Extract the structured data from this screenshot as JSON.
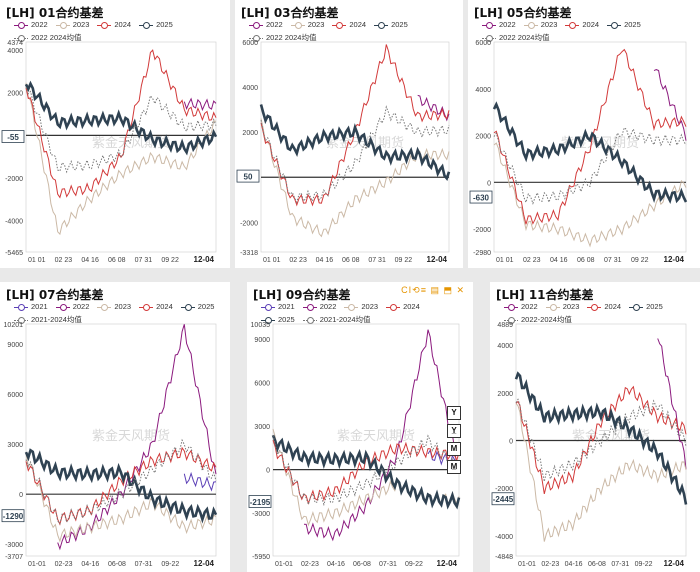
{
  "colors": {
    "2021": "#5b3fb6",
    "2022": "#8b1a7e",
    "2023": "#cbb9a6",
    "2024": "#d23a3a",
    "2025": "#2f4252",
    "avg": "#777777",
    "zero": "#333333"
  },
  "watermark": "紫金天风期货",
  "toolbar_icons": "CI⟲≡ ▤ ⬒ ✕",
  "side_buttons": [
    "Y",
    "Y̲",
    "M",
    "M̲"
  ],
  "panels": [
    {
      "title": "[LH] 01合约基差",
      "legend": [
        "2022",
        "2023",
        "2024",
        "2025",
        "2022 2024均值"
      ],
      "current_label": "-55",
      "end_label": "12-04",
      "x_ticks": [
        "01 01",
        "02 23",
        "04 16",
        "06 08",
        "07 31",
        "09 22"
      ],
      "y_labels": [
        "4374",
        "4000",
        "2000",
        "0",
        "-2000",
        "-4000",
        "-5465"
      ]
    },
    {
      "title": "[LH] 03合约基差",
      "legend": [
        "2022",
        "2023",
        "2024",
        "2025",
        "2022 2024均值"
      ],
      "current_label": "50",
      "end_label": "12-04",
      "x_ticks": [
        "01 01",
        "02 23",
        "04 16",
        "06 08",
        "07 31",
        "09 22"
      ],
      "y_labels": [
        "6000",
        "4000",
        "2000",
        "0",
        "-2000",
        "-3318"
      ]
    },
    {
      "title": "[LH] 05合约基差",
      "legend": [
        "2022",
        "2023",
        "2024",
        "2025",
        "2022 2024均值"
      ],
      "current_label": "-630",
      "end_label": "12-04",
      "x_ticks": [
        "01 01",
        "02 23",
        "04 16",
        "06 08",
        "07 31",
        "09 22"
      ],
      "y_labels": [
        "6000",
        "4000",
        "2000",
        "0",
        "-2000",
        "-2980"
      ]
    },
    {
      "title": "[LH] 07合约基差",
      "legend": [
        "2021",
        "2022",
        "2023",
        "2024",
        "2025",
        "2021-2024均值"
      ],
      "current_label": "-1290",
      "end_label": "12-04",
      "x_ticks": [
        "01-01",
        "02-23",
        "04-16",
        "06-08",
        "07-31",
        "09-22"
      ],
      "y_labels": [
        "10201",
        "9000",
        "6000",
        "3000",
        "0",
        "-3000",
        "-3707"
      ]
    },
    {
      "title": "[LH] 09合约基差",
      "legend": [
        "2021",
        "2022",
        "2023",
        "2024",
        "2025",
        "2021-2024均值"
      ],
      "current_label": "-2195",
      "end_label": "12-04",
      "x_ticks": [
        "01-01",
        "02-23",
        "04-16",
        "06-08",
        "07-31",
        "09-22"
      ],
      "y_labels": [
        "10035",
        "9000",
        "6000",
        "3000",
        "0",
        "-3000",
        "-5950"
      ]
    },
    {
      "title": "[LH] 11合约基差",
      "legend": [
        "2022",
        "2023",
        "2024",
        "2025",
        "2022-2024均值"
      ],
      "current_label": "-2445",
      "end_label": "12-04",
      "x_ticks": [
        "01-01",
        "02-23",
        "04-16",
        "06-08",
        "07-31",
        "09-22"
      ],
      "y_labels": [
        "4889",
        "4000",
        "2000",
        "0",
        "-2000",
        "-4000",
        "-4848"
      ]
    }
  ],
  "chart_data": [
    {
      "type": "line",
      "title": "[LH] 01合约基差",
      "x": [
        "01-01",
        "02-23",
        "04-16",
        "06-08",
        "07-31",
        "09-22",
        "12-04"
      ],
      "ylim": [
        -5465,
        4374
      ],
      "series": [
        {
          "name": "2022",
          "values": [
            null,
            null,
            null,
            null,
            null,
            1500,
            1400
          ]
        },
        {
          "name": "2023",
          "values": [
            2500,
            -4500,
            -3000,
            -1800,
            -1000,
            -1500,
            600
          ]
        },
        {
          "name": "2024",
          "values": [
            2300,
            -2700,
            -2500,
            -1000,
            4000,
            1200,
            800
          ]
        },
        {
          "name": "2025",
          "values": [
            2500,
            600,
            700,
            800,
            -200,
            -600,
            -55
          ]
        },
        {
          "name": "2022 2024均值",
          "values": [
            2400,
            -1500,
            -1400,
            -900,
            1800,
            400,
            500
          ]
        }
      ]
    },
    {
      "type": "line",
      "title": "[LH] 03合约基差",
      "x": [
        "01-01",
        "02-23",
        "04-16",
        "06-08",
        "07-31",
        "09-22",
        "12-04"
      ],
      "ylim": [
        -3318,
        6000
      ],
      "series": [
        {
          "name": "2022",
          "values": [
            null,
            null,
            null,
            null,
            null,
            3500,
            2700
          ]
        },
        {
          "name": "2023",
          "values": [
            2400,
            -1800,
            -2500,
            -1000,
            -200,
            1000,
            1000
          ]
        },
        {
          "name": "2024",
          "values": [
            2200,
            -1000,
            -1000,
            2000,
            5700,
            2700,
            2800
          ]
        },
        {
          "name": "2025",
          "values": [
            3000,
            1200,
            1800,
            2000,
            900,
            1000,
            50
          ]
        },
        {
          "name": "2022 2024均值",
          "values": [
            2300,
            -900,
            -800,
            600,
            2900,
            2000,
            2100
          ]
        }
      ]
    },
    {
      "type": "line",
      "title": "[LH] 05合约基差",
      "x": [
        "01-01",
        "02-23",
        "04-16",
        "06-08",
        "07-31",
        "09-22",
        "12-04"
      ],
      "ylim": [
        -2980,
        6000
      ],
      "series": [
        {
          "name": "2022",
          "values": [
            null,
            null,
            null,
            null,
            null,
            5000,
            2000
          ]
        },
        {
          "name": "2023",
          "values": [
            1800,
            -1800,
            -2000,
            -2500,
            -2000,
            -1000,
            0
          ]
        },
        {
          "name": "2024",
          "values": [
            2300,
            -1600,
            -1400,
            1500,
            5800,
            2500,
            2600
          ]
        },
        {
          "name": "2025",
          "values": [
            3300,
            1200,
            1400,
            2000,
            900,
            -500,
            -630
          ]
        },
        {
          "name": "2022 2024均值",
          "values": [
            2100,
            -700,
            -600,
            0,
            2200,
            1800,
            1800
          ]
        }
      ]
    },
    {
      "type": "line",
      "title": "[LH] 07合约基差",
      "x": [
        "01-01",
        "02-23",
        "04-16",
        "06-08",
        "07-31",
        "09-22",
        "12-04"
      ],
      "ylim": [
        -3707,
        10201
      ],
      "series": [
        {
          "name": "2021",
          "values": [
            null,
            null,
            null,
            null,
            null,
            1000,
            500
          ]
        },
        {
          "name": "2022",
          "values": [
            null,
            -3000,
            -2000,
            0,
            3000,
            10000,
            1000
          ]
        },
        {
          "name": "2023",
          "values": [
            2400,
            -2500,
            -2000,
            -1500,
            -500,
            -2000,
            -1500
          ]
        },
        {
          "name": "2024",
          "values": [
            2000,
            -1500,
            -1000,
            800,
            2000,
            2500,
            1500
          ]
        },
        {
          "name": "2025",
          "values": [
            2600,
            1300,
            1200,
            1300,
            -300,
            -1000,
            -1290
          ]
        },
        {
          "name": "2021-2024均值",
          "values": [
            2200,
            -1500,
            -1000,
            0,
            1500,
            3000,
            800
          ]
        }
      ]
    },
    {
      "type": "line",
      "title": "[LH] 09合约基差",
      "x": [
        "01-01",
        "02-23",
        "04-16",
        "06-08",
        "07-31",
        "09-22",
        "12-04"
      ],
      "ylim": [
        -5950,
        10035
      ],
      "series": [
        {
          "name": "2021",
          "values": [
            null,
            null,
            null,
            null,
            null,
            1000,
            500
          ]
        },
        {
          "name": "2022",
          "values": [
            null,
            -4000,
            -4500,
            -2500,
            1000,
            9500,
            0
          ]
        },
        {
          "name": "2023",
          "values": [
            2500,
            -3500,
            -3000,
            -2000,
            -1000,
            -2000,
            -2000
          ]
        },
        {
          "name": "2024",
          "values": [
            1700,
            -2000,
            -1500,
            500,
            1500,
            1200,
            1000
          ]
        },
        {
          "name": "2025",
          "values": [
            2000,
            800,
            700,
            800,
            -1000,
            -2000,
            -2195
          ]
        },
        {
          "name": "2021-2024均值",
          "values": [
            2000,
            -2000,
            -2000,
            -1000,
            500,
            2000,
            0
          ]
        }
      ]
    },
    {
      "type": "line",
      "title": "[LH] 11合约基差",
      "x": [
        "01-01",
        "02-23",
        "04-16",
        "06-08",
        "07-31",
        "09-22",
        "12-04"
      ],
      "ylim": [
        -4848,
        4889
      ],
      "series": [
        {
          "name": "2022",
          "values": [
            null,
            null,
            null,
            null,
            null,
            4500,
            -1000
          ]
        },
        {
          "name": "2023",
          "values": [
            1800,
            -4000,
            -3500,
            -2000,
            -1000,
            -1500,
            -1000
          ]
        },
        {
          "name": "2024",
          "values": [
            1800,
            -2000,
            -1500,
            800,
            2200,
            1000,
            500
          ]
        },
        {
          "name": "2025",
          "values": [
            2800,
            1000,
            1100,
            1200,
            500,
            -500,
            -2445
          ]
        },
        {
          "name": "2022-2024均值",
          "values": [
            1800,
            -1500,
            -1000,
            0,
            1000,
            1500,
            0
          ]
        }
      ]
    }
  ]
}
